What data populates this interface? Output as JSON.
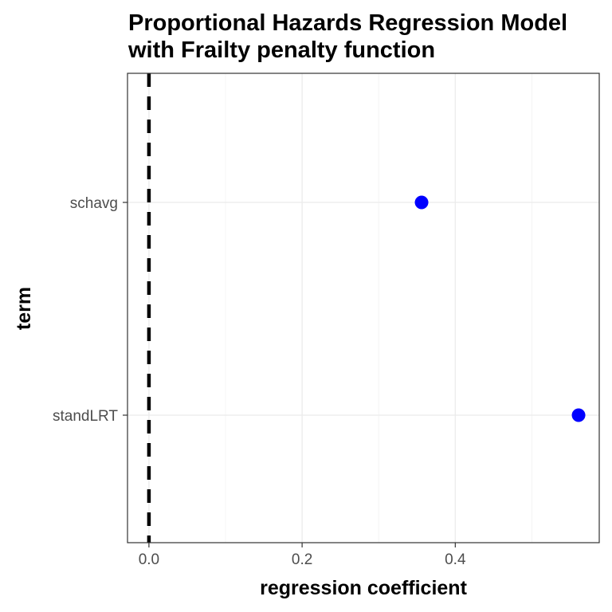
{
  "chart_data": {
    "type": "scatter",
    "title": "Proportional Hazards Regression Model\nwith Frailty penalty function",
    "xlabel": "regression coefficient",
    "ylabel": "term",
    "categories": [
      "standLRT",
      "schavg"
    ],
    "points": [
      {
        "term": "schavg",
        "x": 0.356
      },
      {
        "term": "standLRT",
        "x": 0.561
      }
    ],
    "x_ticks": [
      0.0,
      0.2,
      0.4
    ],
    "x_tick_labels": [
      "0.0",
      "0.2",
      "0.4"
    ],
    "xlim": [
      -0.028,
      0.588
    ],
    "reference_line": {
      "x": 0,
      "style": "dashed",
      "color": "#000000"
    },
    "point_color": "#0000ff",
    "grid": true,
    "legend": "none"
  }
}
